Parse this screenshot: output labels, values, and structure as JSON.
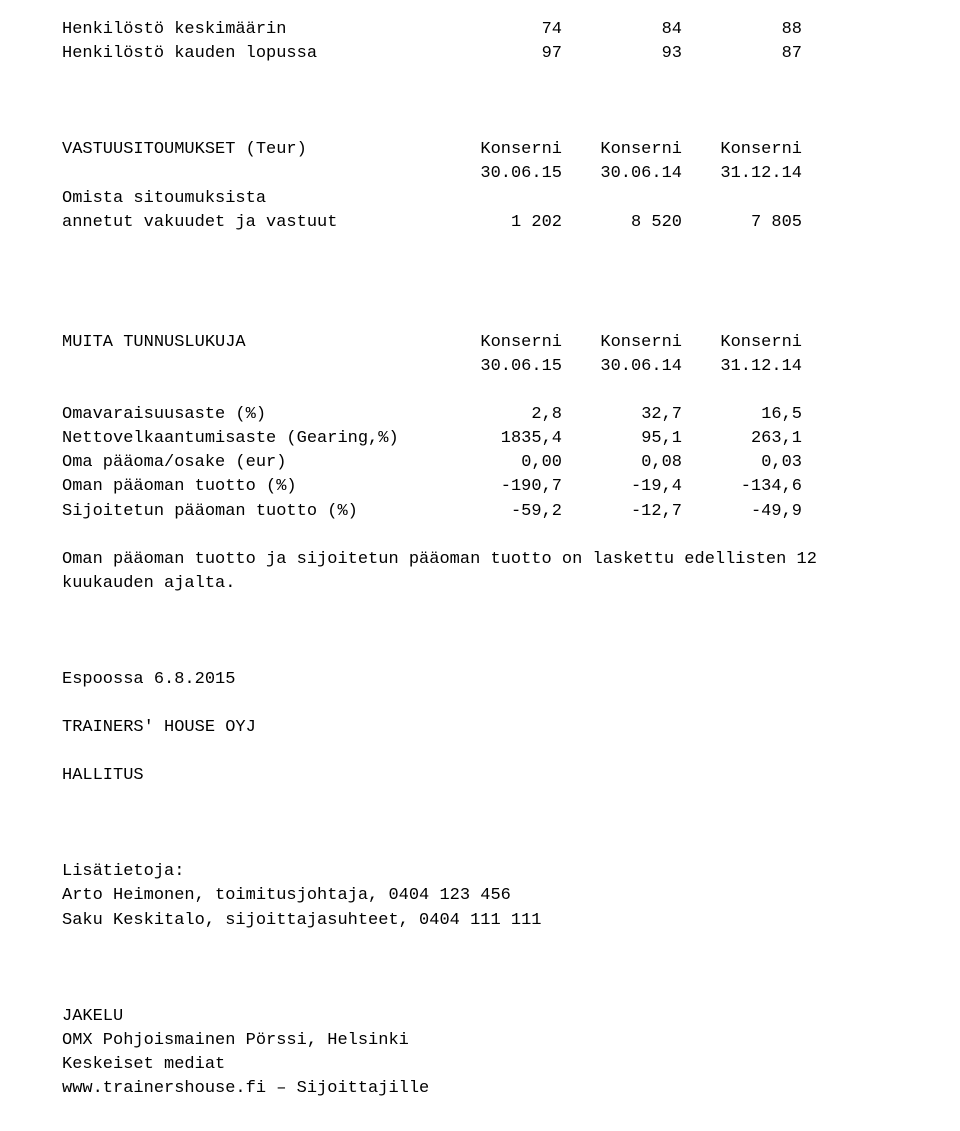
{
  "staff": {
    "rows": [
      {
        "label": "Henkilöstö keskimäärin",
        "c1": "74",
        "c2": "84",
        "c3": "88"
      },
      {
        "label": "Henkilöstö kauden lopussa",
        "c1": "97",
        "c2": "93",
        "c3": "87"
      }
    ]
  },
  "commitments": {
    "header_label": "VASTUUSITOUMUKSET (Teur)",
    "header_cols": [
      "Konserni",
      "Konserni",
      "Konserni"
    ],
    "date_cols": [
      "30.06.15",
      "30.06.14",
      "31.12.14"
    ],
    "intro1": "Omista sitoumuksista",
    "row": {
      "label": "annetut vakuudet ja vastuut",
      "c1": "1 202",
      "c2": "8 520",
      "c3": "7 805"
    }
  },
  "ratios": {
    "header_label": "MUITA TUNNUSLUKUJA",
    "header_cols": [
      "Konserni",
      "Konserni",
      "Konserni"
    ],
    "date_cols": [
      "30.06.15",
      "30.06.14",
      "31.12.14"
    ],
    "rows": [
      {
        "label": "Omavaraisuusaste (%)",
        "c1": "2,8",
        "c2": "32,7",
        "c3": "16,5"
      },
      {
        "label": "Nettovelkaantumisaste (Gearing,%)",
        "c1": "1835,4",
        "c2": "95,1",
        "c3": "263,1"
      },
      {
        "label": "Oma pääoma/osake (eur)",
        "c1": "0,00",
        "c2": "0,08",
        "c3": "0,03"
      },
      {
        "label": "Oman pääoman tuotto (%)",
        "c1": "-190,7",
        "c2": "-19,4",
        "c3": "-134,6"
      },
      {
        "label": "Sijoitetun pääoman tuotto (%)",
        "c1": "-59,2",
        "c2": "-12,7",
        "c3": "-49,9"
      }
    ]
  },
  "note": "Oman pääoman tuotto ja sijoitetun pääoman tuotto on laskettu edellisten 12 kuukauden ajalta.",
  "sig": {
    "place_date": "Espoossa 6.8.2015",
    "company": "TRAINERS' HOUSE OYJ",
    "board": "HALLITUS"
  },
  "contact": {
    "heading": "Lisätietoja:",
    "line1": "Arto Heimonen, toimitusjohtaja, 0404 123 456",
    "line2": "Saku Keskitalo, sijoittajasuhteet, 0404 111 111"
  },
  "distribution": {
    "heading": "JAKELU",
    "line1": "OMX Pohjoismainen Pörssi, Helsinki",
    "line2": "Keskeiset mediat",
    "line3": "www.trainershouse.fi – Sijoittajille"
  }
}
